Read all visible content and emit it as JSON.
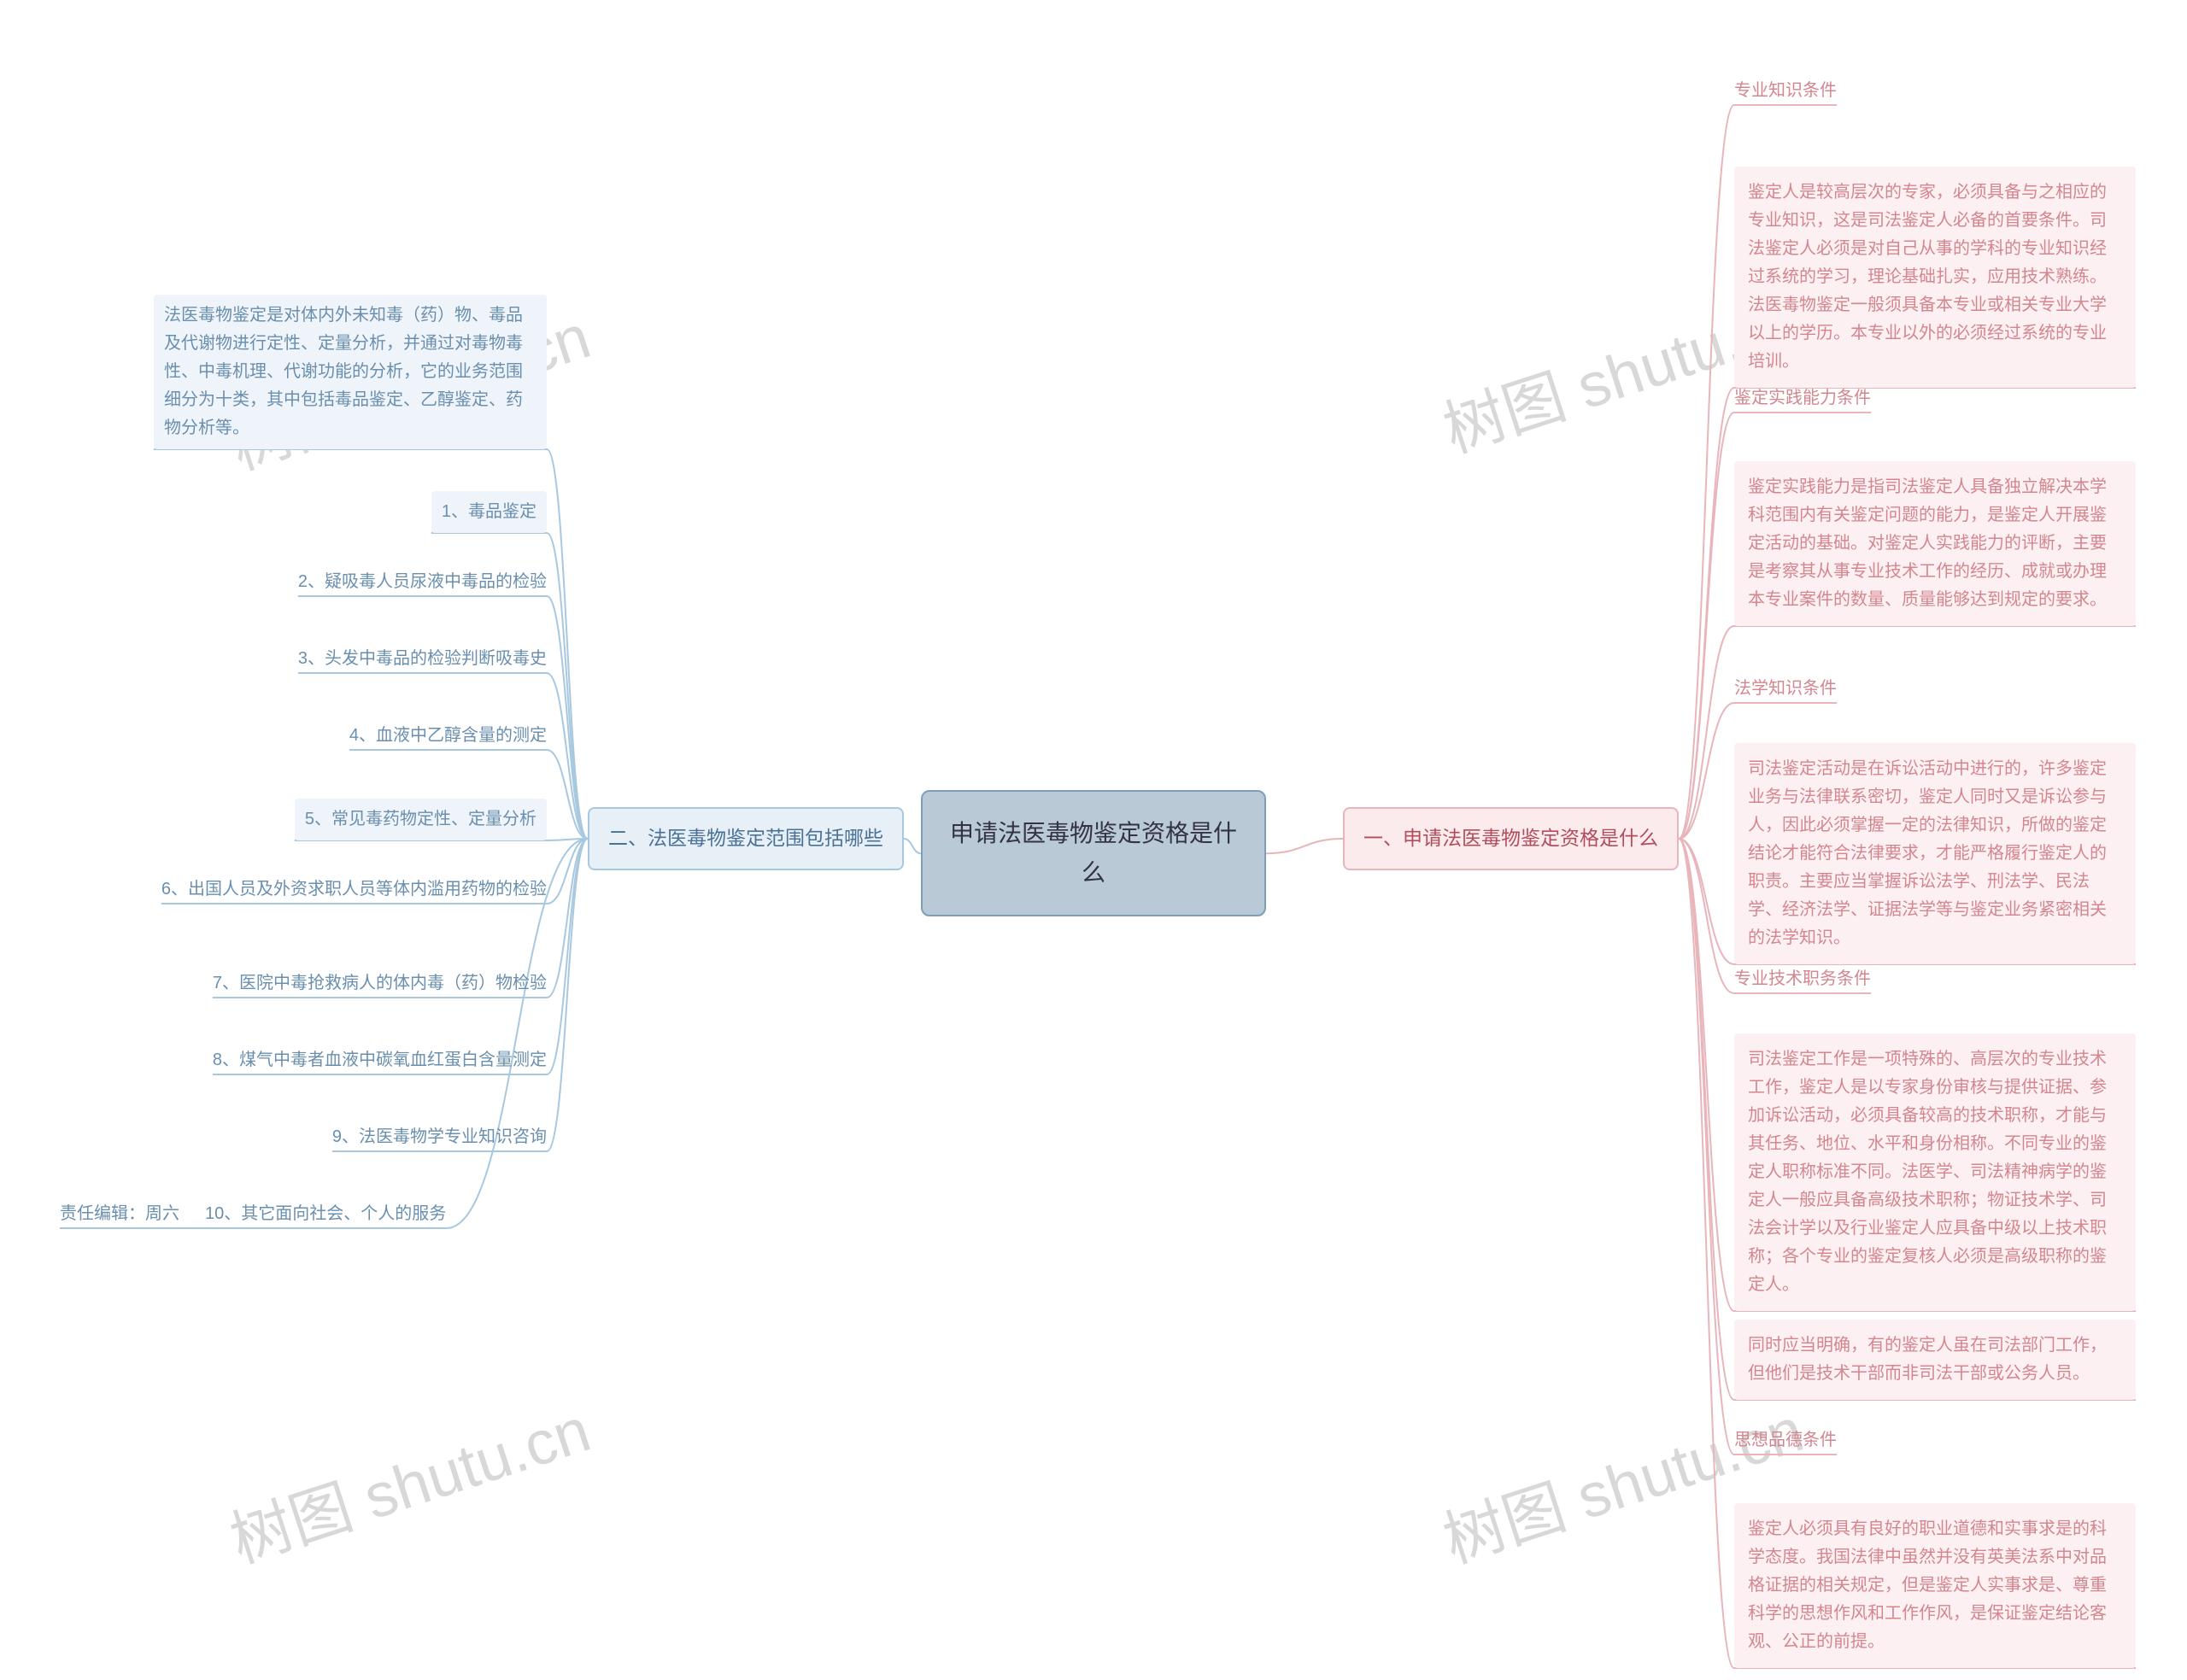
{
  "colors": {
    "bg": "#ffffff",
    "center_fill": "#b9cad6",
    "center_border": "#7da0b8",
    "pink_fill": "#fbebed",
    "pink_border": "#e8b5bb",
    "pink_text": "#d4868f",
    "blue_fill": "#e8f0f7",
    "blue_border": "#a8c8e0",
    "blue_text": "#6a8fae",
    "conn_pink": "#e8b5bb",
    "conn_blue": "#a8c8e0",
    "watermark": "#d8d8d8"
  },
  "watermark": "树图 shutu.cn",
  "center": "申请法医毒物鉴定资格是什么",
  "right": {
    "title": "一、申请法医毒物鉴定资格是什么",
    "items": [
      {
        "text": "专业知识条件",
        "box": false
      },
      {
        "text": "鉴定人是较高层次的专家，必须具备与之相应的专业知识，这是司法鉴定人必备的首要条件。司法鉴定人必须是对自己从事的学科的专业知识经过系统的学习，理论基础扎实，应用技术熟练。法医毒物鉴定一般须具备本专业或相关专业大学以上的学历。本专业以外的必须经过系统的专业培训。",
        "box": true
      },
      {
        "text": "鉴定实践能力条件",
        "box": false
      },
      {
        "text": "鉴定实践能力是指司法鉴定人具备独立解决本学科范围内有关鉴定问题的能力，是鉴定人开展鉴定活动的基础。对鉴定人实践能力的评断，主要是考察其从事专业技术工作的经历、成就或办理本专业案件的数量、质量能够达到规定的要求。",
        "box": true
      },
      {
        "text": "法学知识条件",
        "box": false
      },
      {
        "text": "司法鉴定活动是在诉讼活动中进行的，许多鉴定业务与法律联系密切，鉴定人同时又是诉讼参与人，因此必须掌握一定的法律知识，所做的鉴定结论才能符合法律要求，才能严格履行鉴定人的职责。主要应当掌握诉讼法学、刑法学、民法学、经济法学、证据法学等与鉴定业务紧密相关的法学知识。",
        "box": true
      },
      {
        "text": "专业技术职务条件",
        "box": false
      },
      {
        "text": "司法鉴定工作是一项特殊的、高层次的专业技术工作，鉴定人是以专家身份审核与提供证据、参加诉讼活动，必须具备较高的技术职称，才能与其任务、地位、水平和身份相称。不同专业的鉴定人职称标准不同。法医学、司法精神病学的鉴定人一般应具备高级技术职称；物证技术学、司法会计学以及行业鉴定人应具备中级以上技术职称；各个专业的鉴定复核人必须是高级职称的鉴定人。",
        "box": true
      },
      {
        "text": "同时应当明确，有的鉴定人虽在司法部门工作，但他们是技术干部而非司法干部或公务人员。",
        "box": true
      },
      {
        "text": "思想品德条件",
        "box": false
      },
      {
        "text": "鉴定人必须具有良好的职业道德和实事求是的科学态度。我国法律中虽然并没有英美法系中对品格证据的相关规定，但是鉴定人实事求是、尊重科学的思想作风和工作作风，是保证鉴定结论客观、公正的前提。",
        "box": true
      }
    ]
  },
  "left": {
    "title": "二、法医毒物鉴定范围包括哪些",
    "items": [
      {
        "text": "法医毒物鉴定是对体内外未知毒（药）物、毒品及代谢物进行定性、定量分析，并通过对毒物毒性、中毒机理、代谢功能的分析，它的业务范围细分为十类，其中包括毒品鉴定、乙醇鉴定、药物分析等。",
        "box": true,
        "suffix": ""
      },
      {
        "text": "1、毒品鉴定",
        "box": true,
        "suffix": ""
      },
      {
        "text": "2、疑吸毒人员尿液中毒品的检验",
        "box": false,
        "suffix": ""
      },
      {
        "text": "3、头发中毒品的检验判断吸毒史",
        "box": false,
        "suffix": ""
      },
      {
        "text": "4、血液中乙醇含量的测定",
        "box": false,
        "suffix": ""
      },
      {
        "text": "5、常见毒药物定性、定量分析",
        "box": true,
        "suffix": ""
      },
      {
        "text": "6、出国人员及外资求职人员等体内滥用药物的检验",
        "box": false,
        "suffix": ""
      },
      {
        "text": "7、医院中毒抢救病人的体内毒（药）物检验",
        "box": false,
        "suffix": ""
      },
      {
        "text": "8、煤气中毒者血液中碳氧血红蛋白含量测定",
        "box": false,
        "suffix": ""
      },
      {
        "text": "9、法医毒物学专业知识咨询",
        "box": false,
        "suffix": ""
      },
      {
        "text": "10、其它面向社会、个人的服务",
        "box": false,
        "suffix": "责任编辑：周六"
      }
    ]
  }
}
